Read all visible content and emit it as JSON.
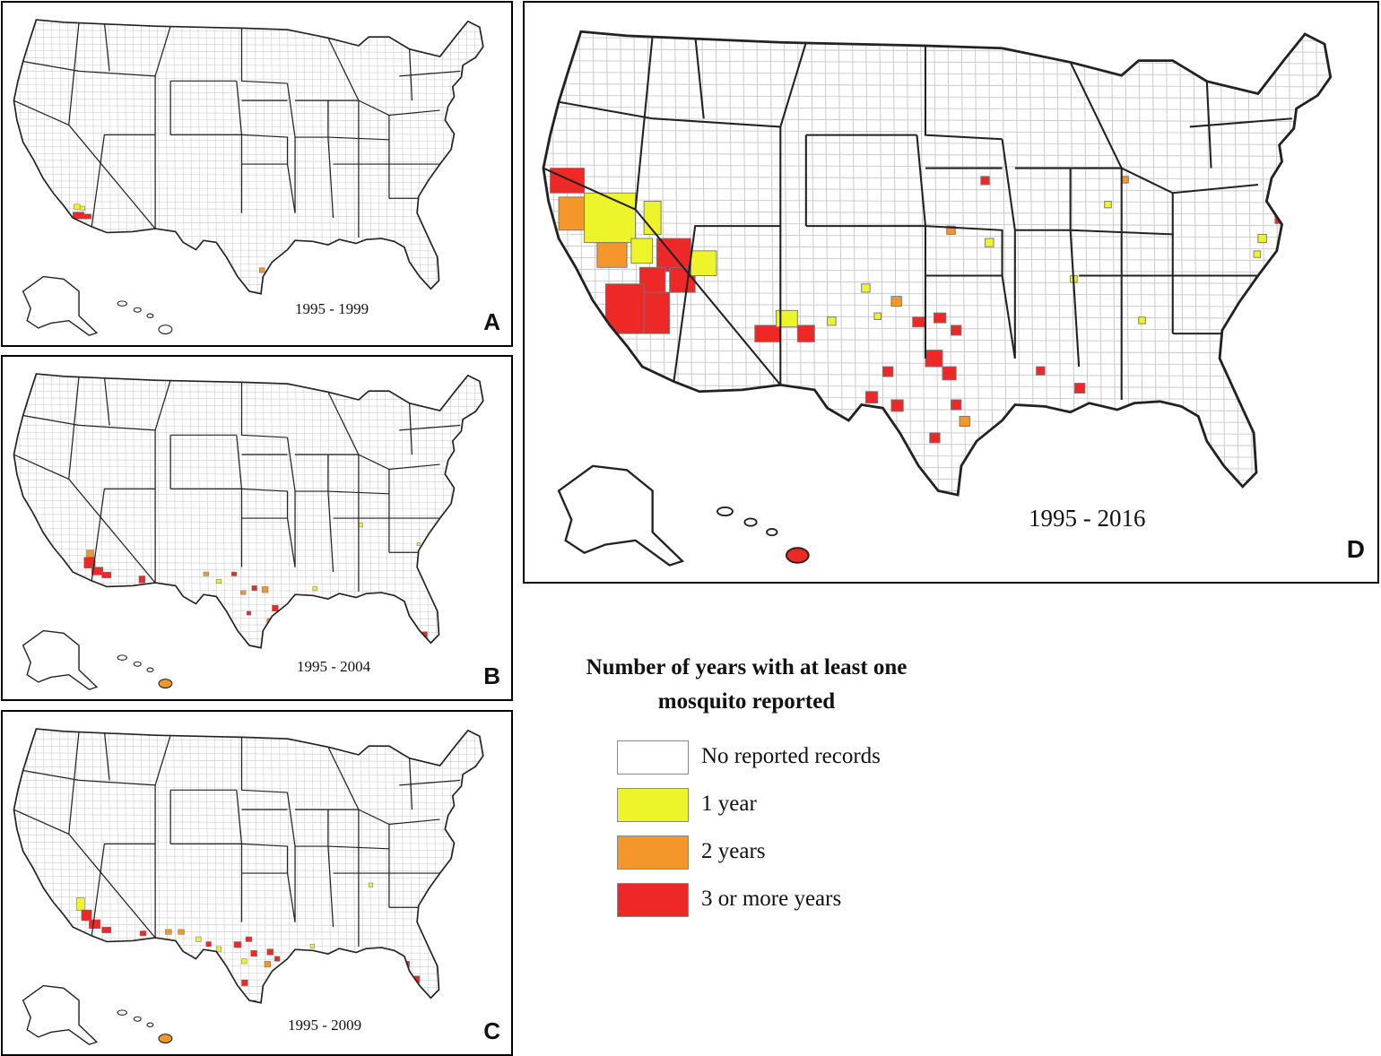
{
  "colors": {
    "none": "#ffffff",
    "one_year": "#eef42a",
    "two_years": "#f4962a",
    "three_plus": "#ee2727",
    "boundary": "#222222",
    "county": "#c8c8c8"
  },
  "panels": [
    {
      "id": "A",
      "letter": "A",
      "years": "1995 - 1999"
    },
    {
      "id": "B",
      "letter": "B",
      "years": "1995 - 2004"
    },
    {
      "id": "C",
      "letter": "C",
      "years": "1995 - 2009"
    },
    {
      "id": "D",
      "letter": "D",
      "years": "1995 - 2016"
    }
  ],
  "legend": {
    "title": "Number of years with at least one mosquito reported",
    "items": [
      {
        "label": "No reported records",
        "color": "#ffffff"
      },
      {
        "label": "1 year",
        "color": "#eef42a"
      },
      {
        "label": "2 years",
        "color": "#f4962a"
      },
      {
        "label": "3 or more years",
        "color": "#ee2727"
      }
    ]
  }
}
